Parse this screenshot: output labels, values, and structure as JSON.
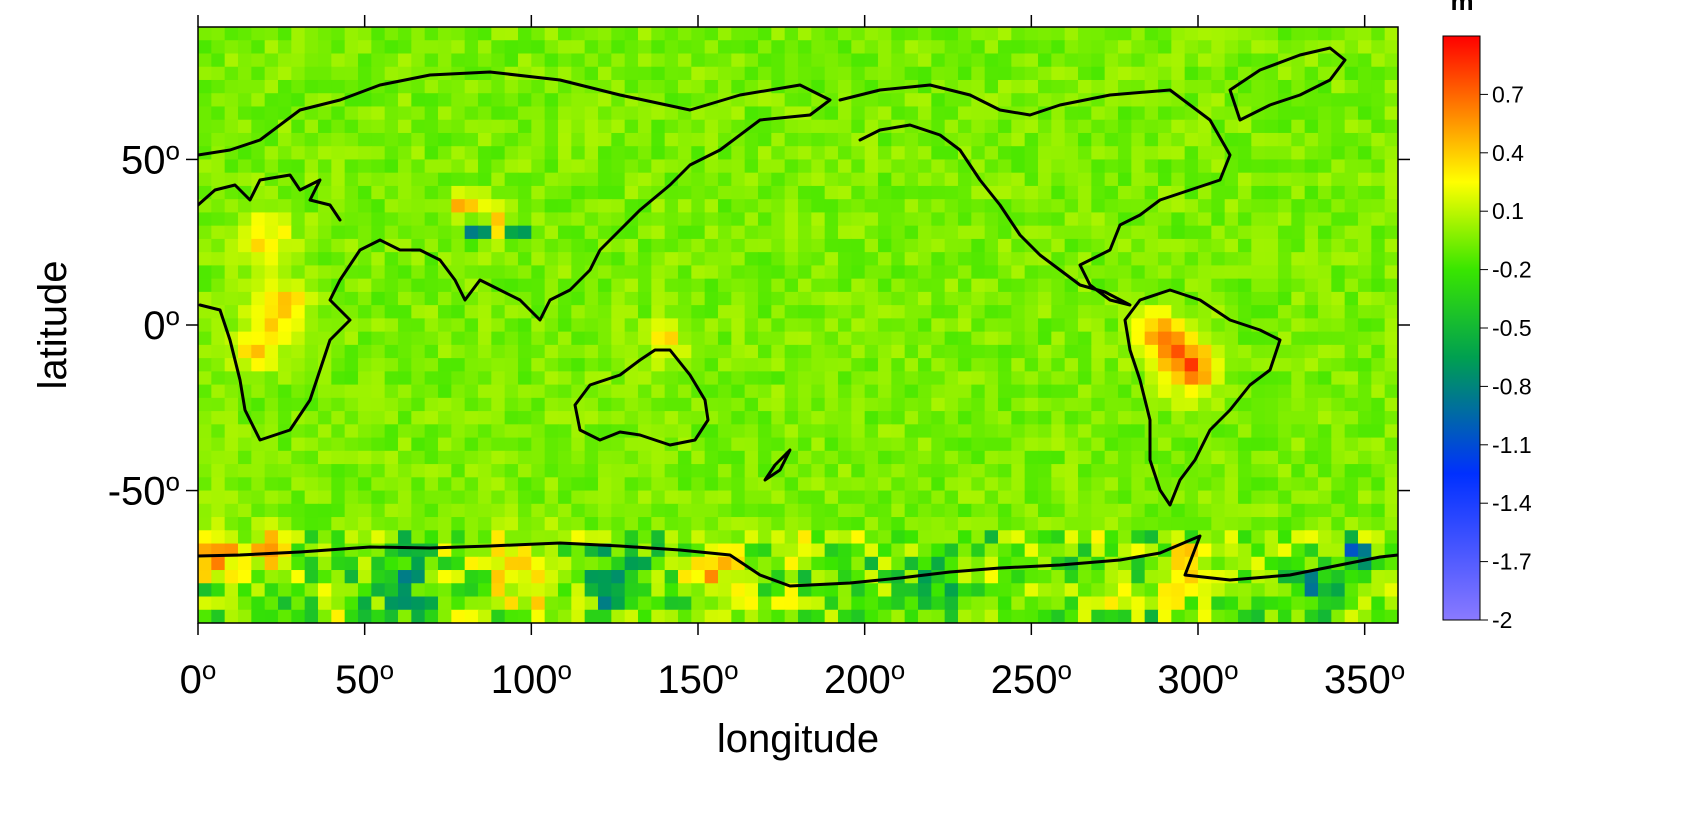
{
  "chart_data": {
    "type": "heatmap",
    "title": "",
    "xlabel": "longitude",
    "ylabel": "latitude",
    "xlim": [
      0,
      360
    ],
    "ylim": [
      -90,
      90
    ],
    "x_ticks": [
      {
        "value": 0,
        "label": "0",
        "sup": "o"
      },
      {
        "value": 50,
        "label": "50",
        "sup": "o"
      },
      {
        "value": 100,
        "label": "100",
        "sup": "o"
      },
      {
        "value": 150,
        "label": "150",
        "sup": "o"
      },
      {
        "value": 200,
        "label": "200",
        "sup": "o"
      },
      {
        "value": 250,
        "label": "250",
        "sup": "o"
      },
      {
        "value": 300,
        "label": "300",
        "sup": "o"
      },
      {
        "value": 350,
        "label": "350",
        "sup": "o"
      }
    ],
    "y_ticks": [
      {
        "value": 50,
        "label": "50",
        "sup": "o"
      },
      {
        "value": 0,
        "label": "0",
        "sup": "o"
      },
      {
        "value": -50,
        "label": "-50",
        "sup": "o"
      }
    ],
    "colorbar": {
      "unit": "m",
      "range": [
        -2,
        1
      ],
      "ticks": [
        "0.7",
        "0.4",
        "0.1",
        "-0.2",
        "-0.5",
        "-0.8",
        "-1.1",
        "-1.4",
        "-1.7",
        "-2"
      ],
      "tick_values": [
        0.7,
        0.4,
        0.1,
        -0.2,
        -0.5,
        -0.8,
        -1.1,
        -1.4,
        -1.7,
        -2
      ],
      "colormap": [
        "#ff0000",
        "#ff8c00",
        "#ffff00",
        "#39e600",
        "#00a050",
        "#0030ff",
        "#8a7aff"
      ]
    },
    "background_value": -0.05,
    "anomalies": [
      {
        "lon": 84,
        "lat": 29,
        "value": -1.2,
        "spread": 2
      },
      {
        "lon": 96,
        "lat": 29,
        "value": -1.1,
        "spread": 2
      },
      {
        "lon": 80,
        "lat": 36,
        "value": 0.6,
        "spread": 3
      },
      {
        "lon": 90,
        "lat": 31,
        "value": 0.5,
        "spread": 4
      },
      {
        "lon": 20,
        "lat": 25,
        "value": 0.4,
        "spread": 6
      },
      {
        "lon": 25,
        "lat": 5,
        "value": 0.5,
        "spread": 6
      },
      {
        "lon": 18,
        "lat": -8,
        "value": 0.4,
        "spread": 5
      },
      {
        "lon": 288,
        "lat": -2,
        "value": 0.5,
        "spread": 5
      },
      {
        "lon": 295,
        "lat": -10,
        "value": 0.6,
        "spread": 6
      },
      {
        "lon": 300,
        "lat": -15,
        "value": 0.4,
        "spread": 5
      },
      {
        "lon": 140,
        "lat": -5,
        "value": 0.4,
        "spread": 4
      },
      {
        "lon": 5,
        "lat": -69,
        "value": 0.8,
        "spread": 5
      },
      {
        "lon": 22,
        "lat": -68,
        "value": 0.7,
        "spread": 4
      },
      {
        "lon": 60,
        "lat": -78,
        "value": -0.5,
        "spread": 7
      },
      {
        "lon": 100,
        "lat": -75,
        "value": 0.4,
        "spread": 8
      },
      {
        "lon": 125,
        "lat": -78,
        "value": -0.4,
        "spread": 7
      },
      {
        "lon": 155,
        "lat": -74,
        "value": 0.5,
        "spread": 6
      },
      {
        "lon": 220,
        "lat": -76,
        "value": -0.3,
        "spread": 8
      },
      {
        "lon": 300,
        "lat": -75,
        "value": 0.5,
        "spread": 6
      },
      {
        "lon": 335,
        "lat": -80,
        "value": -0.6,
        "spread": 5
      },
      {
        "lon": 348,
        "lat": -70,
        "value": -0.9,
        "spread": 3
      }
    ]
  }
}
